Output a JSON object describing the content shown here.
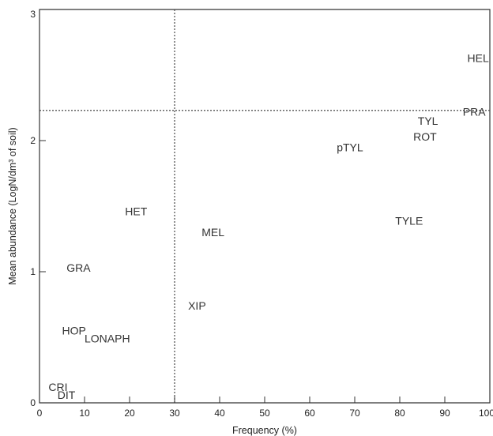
{
  "chart_data": {
    "type": "scatter",
    "title": "",
    "xlabel": "Frequency (%)",
    "ylabel": "Mean abundance (LogN/dm³ of soil)",
    "xlim": [
      0,
      100
    ],
    "ylim": [
      0,
      3
    ],
    "xticks": [
      "0",
      "10",
      "20",
      "30",
      "40",
      "50",
      "60",
      "70",
      "80",
      "90",
      "100"
    ],
    "yticks": [
      "0",
      "1",
      "2",
      "3"
    ],
    "grid": false,
    "reference_lines": {
      "x": 30,
      "y": 2.23
    },
    "points": [
      {
        "label": "HEL",
        "x": 95,
        "y": 2.63
      },
      {
        "label": "PRA",
        "x": 94,
        "y": 2.22
      },
      {
        "label": "TYL",
        "x": 84,
        "y": 2.15
      },
      {
        "label": "ROT",
        "x": 83,
        "y": 2.03
      },
      {
        "label": "pTYL",
        "x": 66,
        "y": 1.95
      },
      {
        "label": "TYLE",
        "x": 79,
        "y": 1.39
      },
      {
        "label": "HET",
        "x": 19,
        "y": 1.46
      },
      {
        "label": "MEL",
        "x": 36,
        "y": 1.3
      },
      {
        "label": "GRA",
        "x": 6,
        "y": 1.03
      },
      {
        "label": "XIP",
        "x": 33,
        "y": 0.74
      },
      {
        "label": "HOP",
        "x": 5,
        "y": 0.55
      },
      {
        "label": "LONAPH",
        "x": 10,
        "y": 0.49
      },
      {
        "label": "CRI",
        "x": 2,
        "y": 0.12
      },
      {
        "label": "DIT",
        "x": 4,
        "y": 0.06
      }
    ]
  }
}
